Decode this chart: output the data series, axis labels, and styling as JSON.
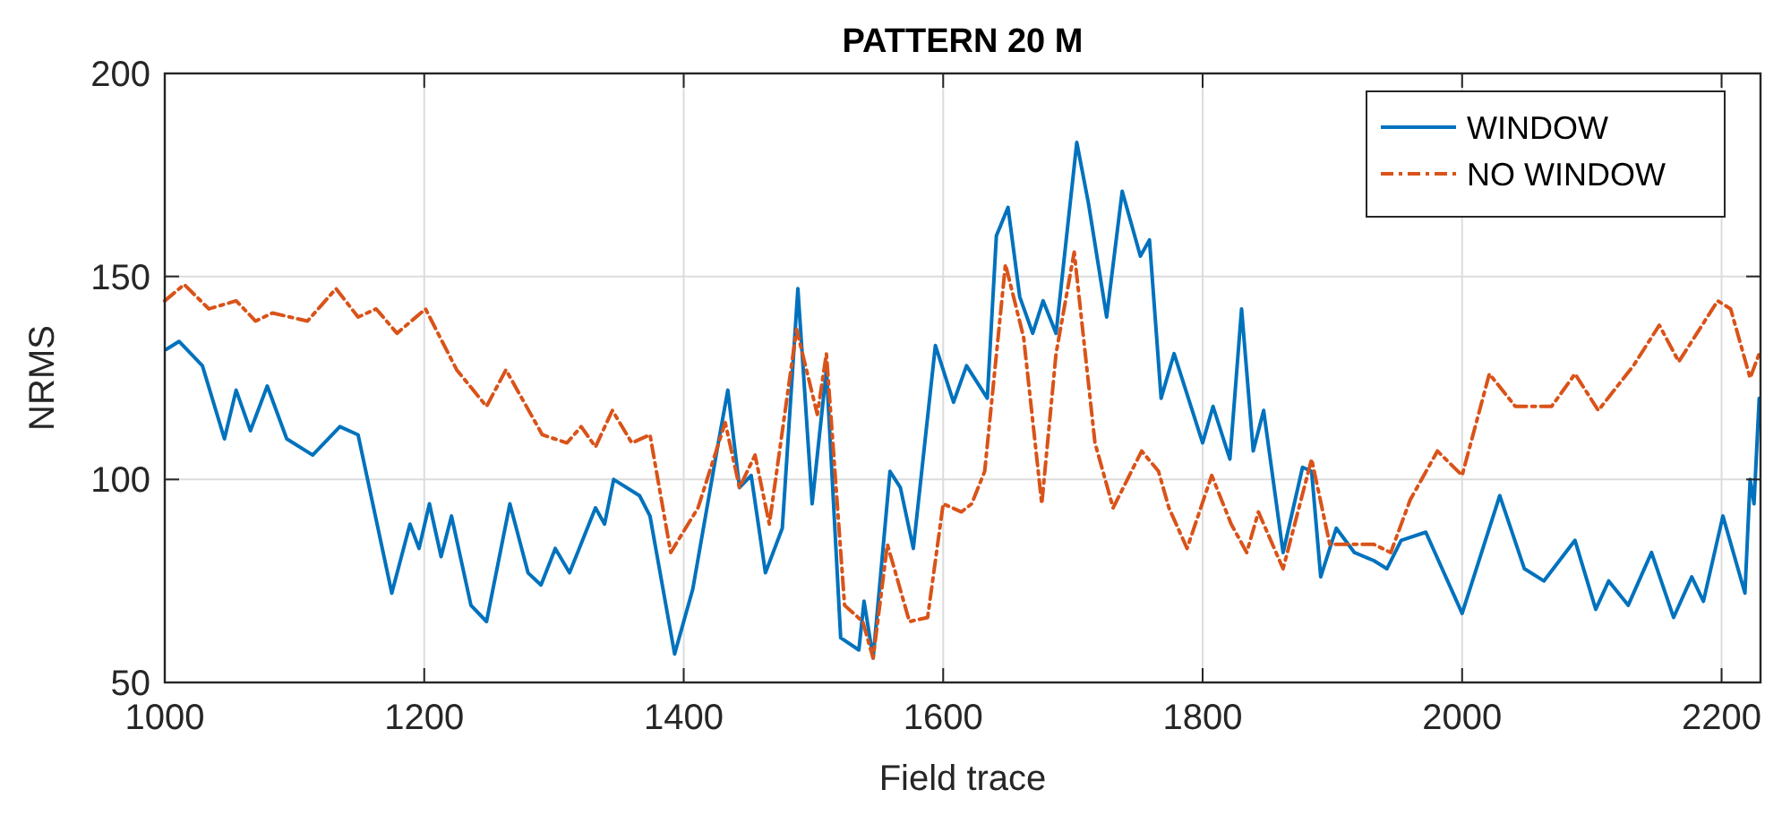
{
  "chart_data": {
    "type": "line",
    "title": "PATTERN 20 M",
    "xlabel": "Field trace",
    "ylabel": "NRMS",
    "xlim": [
      1000,
      2230
    ],
    "xticks": [
      1000,
      1200,
      1400,
      1600,
      1800,
      2000,
      2200
    ],
    "ylim": [
      50,
      200
    ],
    "yticks": [
      50,
      100,
      150,
      200
    ],
    "grid": true,
    "legend": "top right",
    "series": [
      {
        "name": "WINDOW",
        "color": "#0072bd",
        "line_style": "solid",
        "x": [
          1001,
          1011,
          1029,
          1046,
          1055,
          1066,
          1079,
          1094,
          1114,
          1135,
          1149,
          1175,
          1189,
          1196,
          1204,
          1213,
          1221,
          1236,
          1248,
          1266,
          1280,
          1290,
          1301,
          1312,
          1332,
          1339,
          1346,
          1366,
          1374,
          1393,
          1407,
          1425,
          1434,
          1443,
          1452,
          1463,
          1476,
          1488,
          1499,
          1510,
          1521,
          1535,
          1539,
          1546,
          1559,
          1567,
          1577,
          1594,
          1608,
          1618,
          1634,
          1641,
          1650,
          1659,
          1669,
          1677,
          1687,
          1703,
          1712,
          1726,
          1738,
          1752,
          1759,
          1768,
          1778,
          1800,
          1808,
          1821,
          1830,
          1839,
          1847,
          1862,
          1877,
          1884,
          1891,
          1903,
          1917,
          1932,
          1942,
          1953,
          1972,
          2000,
          2029,
          2048,
          2063,
          2087,
          2103,
          2113,
          2128,
          2146,
          2163,
          2177,
          2186,
          2201,
          2218,
          2222,
          2225,
          2229
        ],
        "values": [
          132,
          134,
          128,
          110,
          122,
          112,
          123,
          110,
          106,
          113,
          111,
          72,
          89,
          83,
          94,
          81,
          91,
          69,
          65,
          94,
          77,
          74,
          83,
          77,
          93,
          89,
          100,
          96,
          91,
          57,
          73,
          106,
          122,
          98,
          101,
          77,
          88,
          147,
          94,
          127,
          61,
          58,
          70,
          56,
          102,
          98,
          83,
          133,
          119,
          128,
          120,
          160,
          167,
          145,
          136,
          144,
          136,
          183,
          168,
          140,
          171,
          155,
          159,
          120,
          131,
          109,
          118,
          105,
          142,
          107,
          117,
          82,
          103,
          102,
          76,
          88,
          82,
          80,
          78,
          85,
          87,
          67,
          96,
          78,
          75,
          85,
          68,
          75,
          69,
          82,
          66,
          76,
          70,
          91,
          72,
          100,
          94,
          120
        ]
      },
      {
        "name": "NO WINDOW",
        "color": "#d95319",
        "line_style": "dashdot",
        "x": [
          1000,
          1015,
          1034,
          1055,
          1070,
          1083,
          1110,
          1132,
          1149,
          1163,
          1179,
          1201,
          1225,
          1248,
          1263,
          1291,
          1310,
          1321,
          1332,
          1345,
          1360,
          1374,
          1390,
          1411,
          1432,
          1443,
          1455,
          1466,
          1487,
          1503,
          1510,
          1524,
          1538,
          1546,
          1557,
          1574,
          1588,
          1600,
          1614,
          1622,
          1632,
          1648,
          1662,
          1676,
          1687,
          1701,
          1717,
          1731,
          1753,
          1766,
          1774,
          1788,
          1807,
          1822,
          1834,
          1843,
          1862,
          1884,
          1898,
          1932,
          1945,
          1960,
          1981,
          2000,
          2021,
          2041,
          2069,
          2087,
          2105,
          2132,
          2152,
          2167,
          2197,
          2207,
          2222,
          2229
        ],
        "values": [
          144,
          148,
          142,
          144,
          139,
          141,
          139,
          147,
          140,
          142,
          136,
          142,
          127,
          118,
          127,
          111,
          109,
          113,
          108,
          117,
          109,
          111,
          82,
          93,
          114,
          98,
          106,
          89,
          137,
          116,
          131,
          69,
          65,
          56,
          84,
          65,
          66,
          94,
          92,
          94,
          102,
          153,
          135,
          94,
          131,
          156,
          109,
          93,
          107,
          102,
          93,
          83,
          101,
          89,
          82,
          92,
          78,
          105,
          84,
          84,
          82,
          95,
          107,
          101,
          126,
          118,
          118,
          126,
          117,
          128,
          138,
          129,
          144,
          142,
          125,
          131
        ]
      }
    ]
  }
}
